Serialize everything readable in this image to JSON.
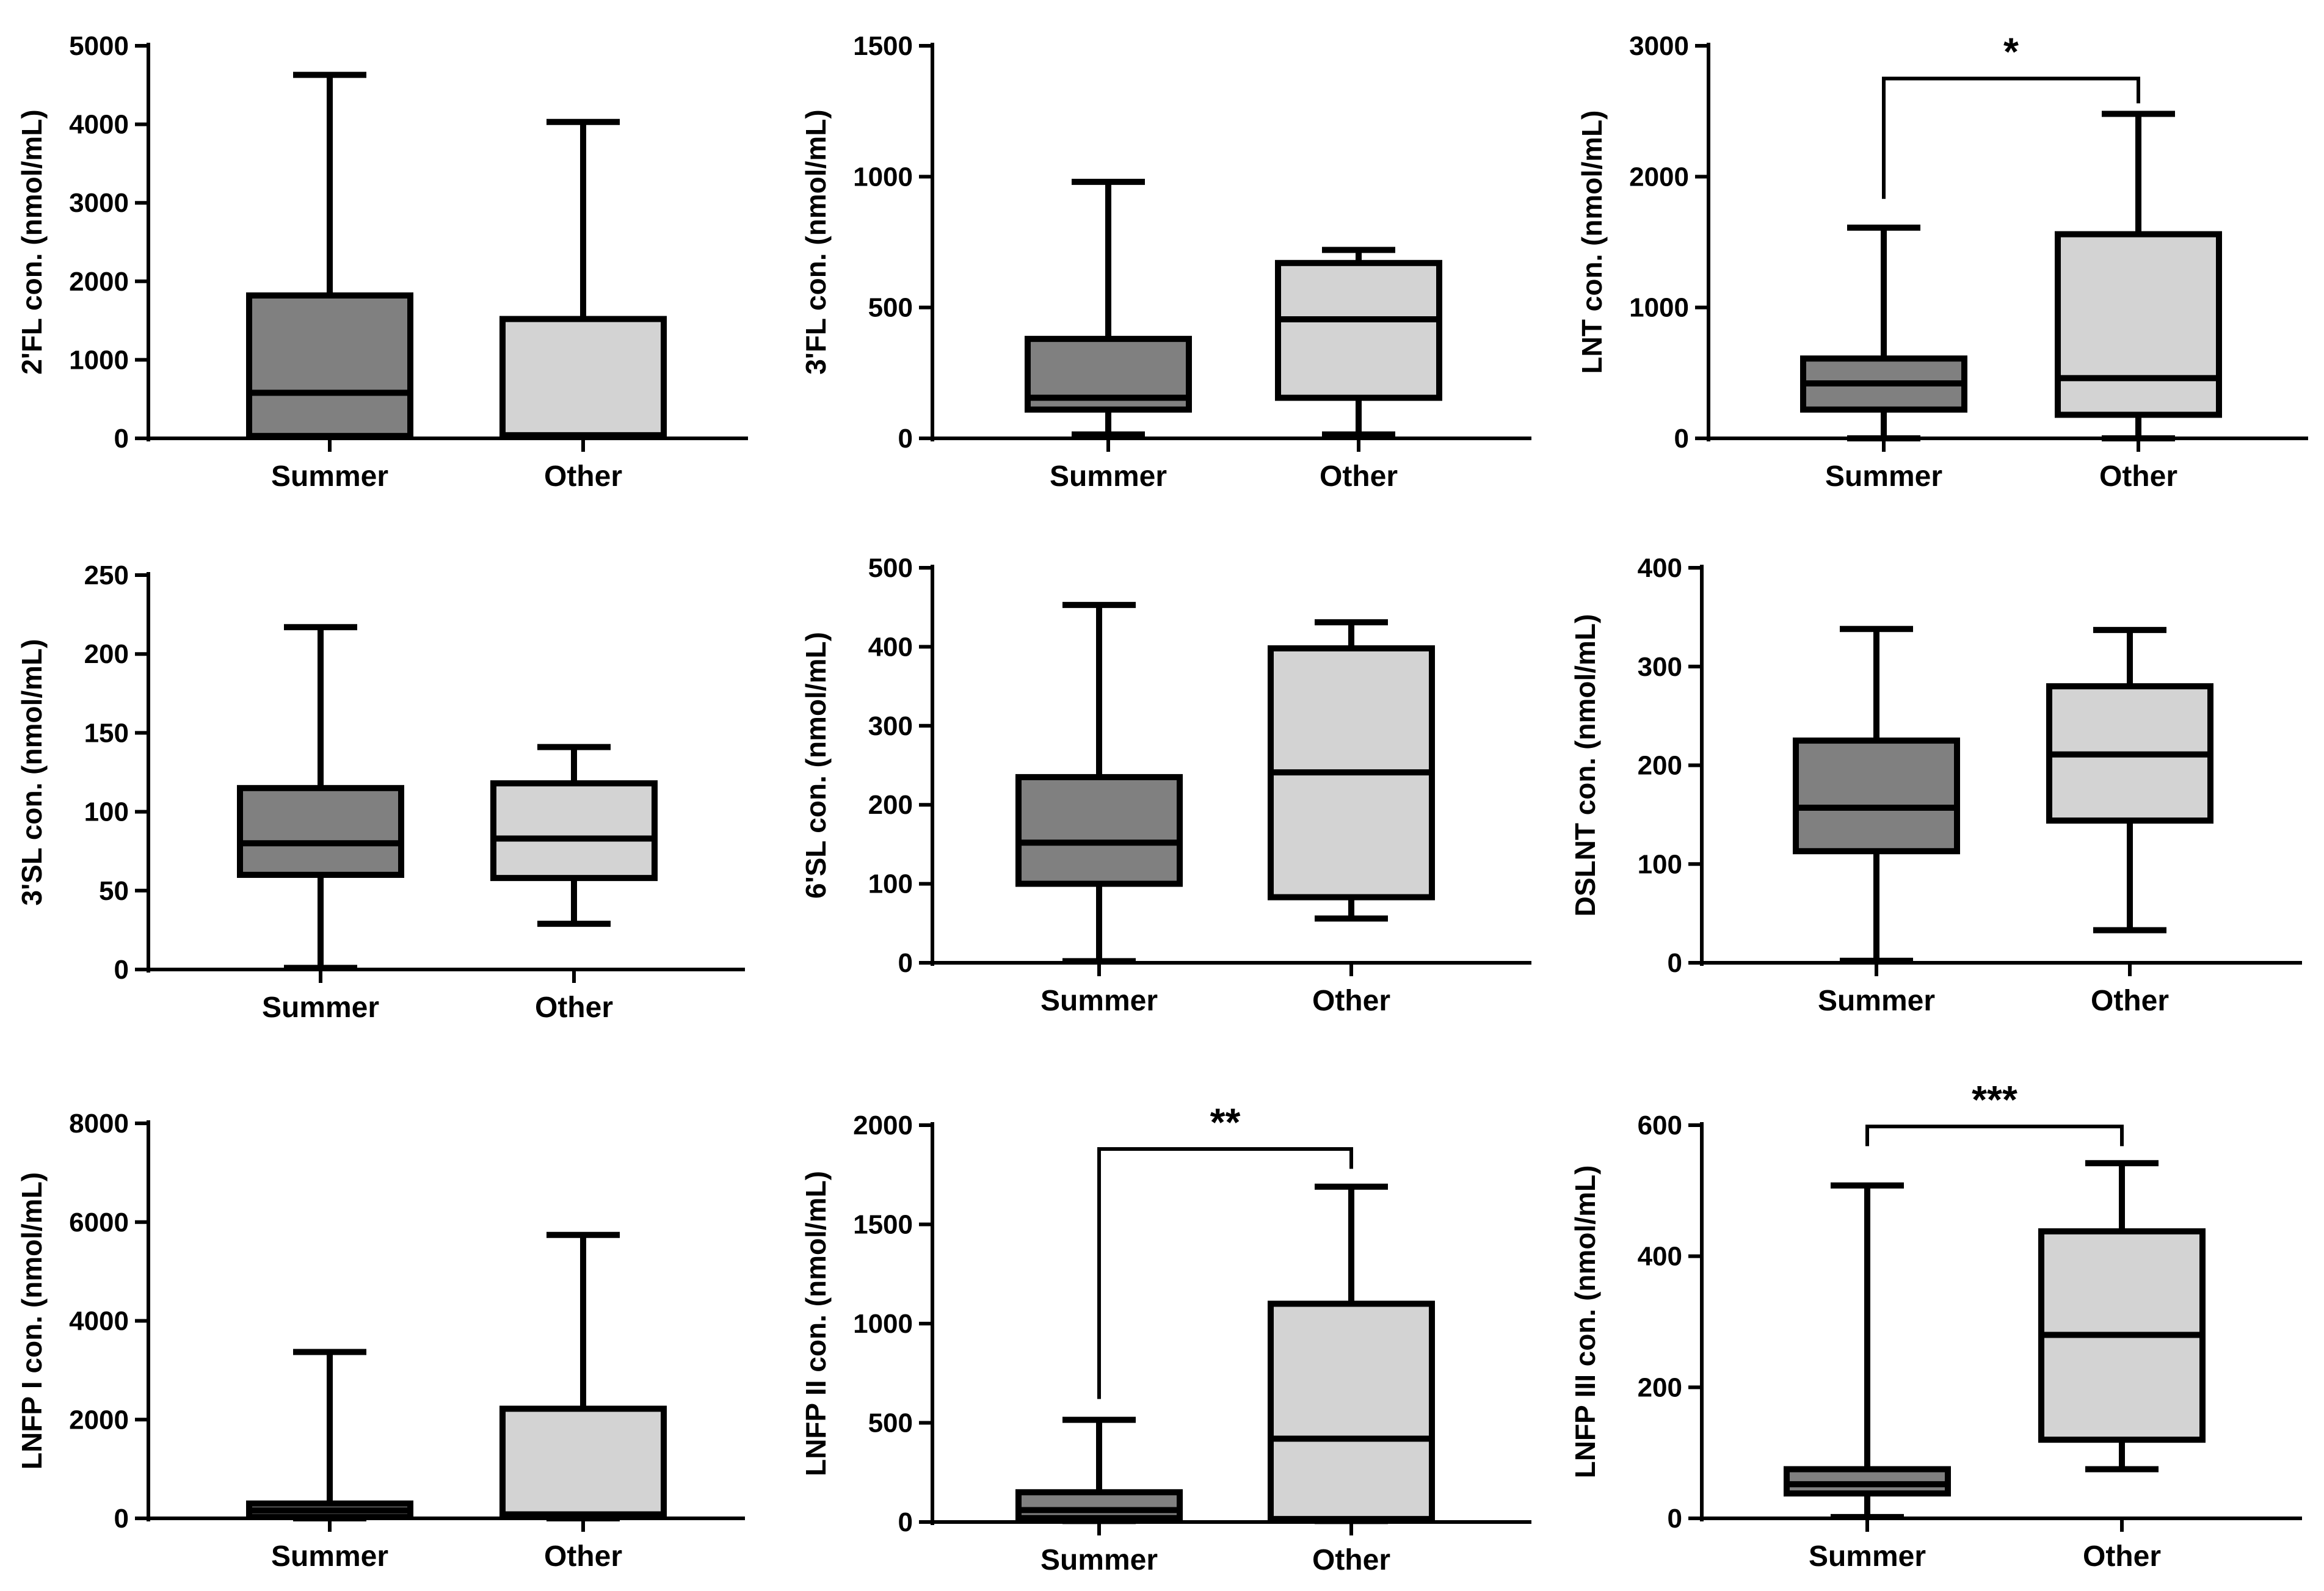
{
  "colors": {
    "summer_box": "#808080",
    "other_box": "#d3d3d3",
    "stroke": "#000000"
  },
  "chart_data": [
    {
      "type": "box",
      "ylabel": "2'FL con. (nmol/mL)",
      "ylim": [
        0,
        5000
      ],
      "yticks": [
        0,
        1000,
        2000,
        3000,
        4000,
        5000
      ],
      "ytick_labels": [
        "0",
        "1000",
        "2000",
        "3000",
        "4000",
        "5000"
      ],
      "categories": [
        "Summer",
        "Other"
      ],
      "boxes": [
        {
          "min": 30,
          "q1": 30,
          "median": 580,
          "q3": 1820,
          "max": 4630
        },
        {
          "min": 30,
          "q1": 30,
          "median": 40,
          "q3": 1520,
          "max": 4030
        }
      ],
      "significance": null
    },
    {
      "type": "box",
      "ylabel": "3'FL con. (nmol/mL)",
      "ylim": [
        0,
        1500
      ],
      "yticks": [
        0,
        500,
        1000,
        1500
      ],
      "ytick_labels": [
        "0",
        "500",
        "1000",
        "1500"
      ],
      "categories": [
        "Summer",
        "Other"
      ],
      "boxes": [
        {
          "min": 15,
          "q1": 110,
          "median": 155,
          "q3": 380,
          "max": 980
        },
        {
          "min": 15,
          "q1": 155,
          "median": 455,
          "q3": 670,
          "max": 720
        }
      ],
      "significance": null
    },
    {
      "type": "box",
      "ylabel": "LNT con. (nmol/mL)",
      "ylim": [
        0,
        3000
      ],
      "yticks": [
        0,
        1000,
        2000,
        3000
      ],
      "ytick_labels": [
        "0",
        "1000",
        "2000",
        "3000"
      ],
      "categories": [
        "Summer",
        "Other"
      ],
      "boxes": [
        {
          "min": 0,
          "q1": 220,
          "median": 420,
          "q3": 610,
          "max": 1610
        },
        {
          "min": 0,
          "q1": 180,
          "median": 460,
          "q3": 1560,
          "max": 2480
        }
      ],
      "significance": {
        "label": "*",
        "bar_level": 2750,
        "left_drop_to": 1830,
        "right_drop_to": 2560
      }
    },
    {
      "type": "box",
      "ylabel": "3'SL con. (nmol/mL)",
      "ylim": [
        0,
        250
      ],
      "yticks": [
        0,
        50,
        100,
        150,
        200,
        250
      ],
      "ytick_labels": [
        "0",
        "50",
        "100",
        "150",
        "200",
        "250"
      ],
      "categories": [
        "Summer",
        "Other"
      ],
      "boxes": [
        {
          "min": 1,
          "q1": 60,
          "median": 80,
          "q3": 115,
          "max": 217
        },
        {
          "min": 29,
          "q1": 58,
          "median": 83,
          "q3": 118,
          "max": 141
        }
      ],
      "significance": null
    },
    {
      "type": "box",
      "ylabel": "6'SL con. (nmol/mL)",
      "ylim": [
        0,
        500
      ],
      "yticks": [
        0,
        100,
        200,
        300,
        400,
        500
      ],
      "ytick_labels": [
        "0",
        "100",
        "200",
        "300",
        "400",
        "500"
      ],
      "categories": [
        "Summer",
        "Other"
      ],
      "boxes": [
        {
          "min": 2,
          "q1": 100,
          "median": 152,
          "q3": 235,
          "max": 453
        },
        {
          "min": 56,
          "q1": 83,
          "median": 241,
          "q3": 398,
          "max": 431
        }
      ],
      "significance": null
    },
    {
      "type": "box",
      "ylabel": "DSLNT con. (nmol/mL)",
      "ylim": [
        0,
        400
      ],
      "yticks": [
        0,
        100,
        200,
        300,
        400
      ],
      "ytick_labels": [
        "0",
        "100",
        "200",
        "300",
        "400"
      ],
      "categories": [
        "Summer",
        "Other"
      ],
      "boxes": [
        {
          "min": 2,
          "q1": 113,
          "median": 157,
          "q3": 225,
          "max": 338
        },
        {
          "min": 33,
          "q1": 144,
          "median": 211,
          "q3": 280,
          "max": 337
        }
      ],
      "significance": null
    },
    {
      "type": "box",
      "ylabel": "LNFP I con. (nmol/mL)",
      "ylim": [
        0,
        8000
      ],
      "yticks": [
        0,
        2000,
        4000,
        6000,
        8000
      ],
      "ytick_labels": [
        "0",
        "2000",
        "4000",
        "6000",
        "8000"
      ],
      "categories": [
        "Summer",
        "Other"
      ],
      "boxes": [
        {
          "min": 0,
          "q1": 30,
          "median": 160,
          "q3": 300,
          "max": 3370
        },
        {
          "min": 0,
          "q1": 60,
          "median": 80,
          "q3": 2220,
          "max": 5740
        }
      ],
      "significance": null
    },
    {
      "type": "box",
      "ylabel": "LNFP II con. (nmol/mL)",
      "ylim": [
        0,
        2000
      ],
      "yticks": [
        0,
        500,
        1000,
        1500,
        2000
      ],
      "ytick_labels": [
        "0",
        "500",
        "1000",
        "1500",
        "2000"
      ],
      "categories": [
        "Summer",
        "Other"
      ],
      "boxes": [
        {
          "min": 5,
          "q1": 20,
          "median": 60,
          "q3": 150,
          "max": 515
        },
        {
          "min": 5,
          "q1": 15,
          "median": 420,
          "q3": 1100,
          "max": 1690
        }
      ],
      "significance": {
        "label": "**",
        "bar_level": 1880,
        "left_drop_to": 620,
        "right_drop_to": 1780
      }
    },
    {
      "type": "box",
      "ylabel": "LNFP III con. (nmol/mL)",
      "ylim": [
        0,
        600
      ],
      "yticks": [
        0,
        200,
        400,
        600
      ],
      "ytick_labels": [
        "0",
        "200",
        "400",
        "600"
      ],
      "categories": [
        "Summer",
        "Other"
      ],
      "boxes": [
        {
          "min": 2,
          "q1": 38,
          "median": 52,
          "q3": 75,
          "max": 508
        },
        {
          "min": 75,
          "q1": 120,
          "median": 280,
          "q3": 438,
          "max": 542
        }
      ],
      "significance": {
        "label": "***",
        "bar_level": 598,
        "left_drop_to": 568,
        "right_drop_to": 568
      }
    }
  ]
}
